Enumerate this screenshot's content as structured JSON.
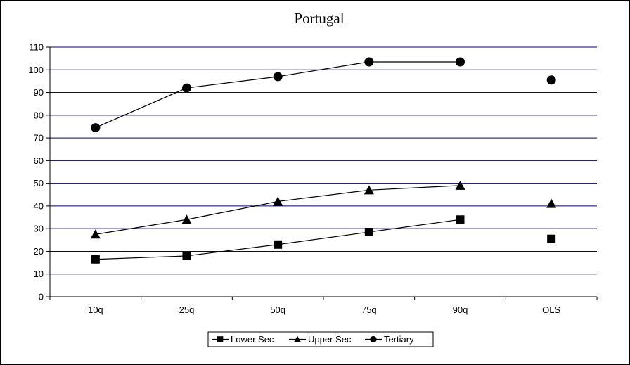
{
  "chart_data": {
    "type": "line",
    "title": "Portugal",
    "xlabel": "",
    "ylabel": "",
    "categories": [
      "10q",
      "25q",
      "50q",
      "75q",
      "90q",
      "OLS"
    ],
    "ylim": [
      0,
      110
    ],
    "yticks": [
      0,
      10,
      20,
      30,
      40,
      50,
      60,
      70,
      80,
      90,
      100,
      110
    ],
    "grid": true,
    "legend_position": "bottom",
    "series": [
      {
        "name": "Lower Sec",
        "marker": "square",
        "values": [
          16.5,
          18,
          23,
          28.5,
          34,
          25.5
        ]
      },
      {
        "name": "Upper Sec",
        "marker": "triangle",
        "values": [
          27.5,
          34,
          42,
          47,
          49,
          41
        ]
      },
      {
        "name": "Tertiary",
        "marker": "circle",
        "values": [
          74.5,
          92,
          97,
          103.5,
          103.5,
          95.5
        ]
      }
    ],
    "connected_categories": [
      "10q",
      "25q",
      "50q",
      "75q",
      "90q"
    ],
    "colors": {
      "gridline": "#000080",
      "series": "#000000",
      "plot_background": "#ffffff"
    }
  }
}
